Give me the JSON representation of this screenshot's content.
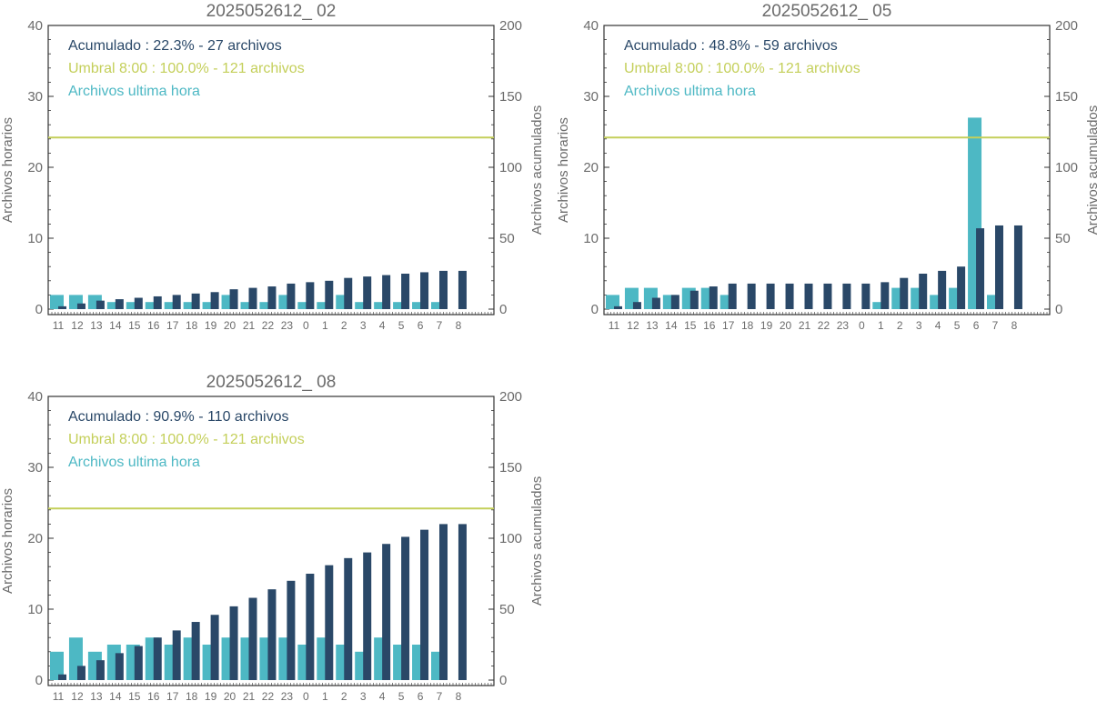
{
  "colors": {
    "hourly": "#4db8c4",
    "cumulative": "#2a4868",
    "threshold": "#c4cf5a",
    "axis": "#333333",
    "text": "#6b6b6b"
  },
  "chart_data": [
    {
      "type": "bar",
      "title": "2025052612_ 02",
      "ylabel_left": "Archivos horarios",
      "ylabel_right": "Archivos acumulados",
      "ylim_left": [
        0,
        40
      ],
      "ylim_right": [
        0,
        200
      ],
      "yticks_left": [
        "0",
        "10",
        "20",
        "30",
        "40"
      ],
      "yticks_right": [
        "0",
        "50",
        "100",
        "150",
        "200"
      ],
      "categories": [
        "11",
        "12",
        "13",
        "14",
        "15",
        "16",
        "17",
        "18",
        "19",
        "20",
        "21",
        "22",
        "23",
        "0",
        "1",
        "2",
        "3",
        "4",
        "5",
        "6",
        "7",
        "8"
      ],
      "threshold": 121,
      "legend": [
        {
          "text": "Acumulado : 22.3% - 27 archivos",
          "color": "#2a4868"
        },
        {
          "text": "Umbral 8:00 : 100.0% - 121 archivos",
          "color": "#c4cf5a"
        },
        {
          "text": "Archivos ultima hora",
          "color": "#4db8c4"
        }
      ],
      "series": [
        {
          "name": "Archivos ultima hora",
          "axis": "left",
          "values": [
            2,
            2,
            2,
            1,
            1,
            1,
            1,
            1,
            1,
            2,
            1,
            1,
            2,
            1,
            1,
            2,
            1,
            1,
            1,
            1,
            1,
            0
          ]
        },
        {
          "name": "Acumulado",
          "axis": "right",
          "values": [
            2,
            4,
            6,
            7,
            8,
            9,
            10,
            11,
            12,
            14,
            15,
            16,
            18,
            19,
            20,
            22,
            23,
            24,
            25,
            26,
            27,
            27
          ]
        }
      ]
    },
    {
      "type": "bar",
      "title": "2025052612_ 05",
      "ylabel_left": "Archivos horarios",
      "ylabel_right": "Archivos acumulados",
      "ylim_left": [
        0,
        40
      ],
      "ylim_right": [
        0,
        200
      ],
      "yticks_left": [
        "0",
        "10",
        "20",
        "30",
        "40"
      ],
      "yticks_right": [
        "0",
        "50",
        "100",
        "150",
        "200"
      ],
      "categories": [
        "11",
        "12",
        "13",
        "14",
        "15",
        "16",
        "17",
        "18",
        "19",
        "20",
        "21",
        "22",
        "23",
        "0",
        "1",
        "2",
        "3",
        "4",
        "5",
        "6",
        "7",
        "8"
      ],
      "threshold": 121,
      "legend": [
        {
          "text": "Acumulado : 48.8% - 59 archivos",
          "color": "#2a4868"
        },
        {
          "text": "Umbral 8:00 : 100.0% - 121 archivos",
          "color": "#c4cf5a"
        },
        {
          "text": "Archivos ultima hora",
          "color": "#4db8c4"
        }
      ],
      "series": [
        {
          "name": "Archivos ultima hora",
          "axis": "left",
          "values": [
            2,
            3,
            3,
            2,
            3,
            3,
            2,
            0,
            0,
            0,
            0,
            0,
            0,
            0,
            1,
            3,
            3,
            2,
            3,
            27,
            2,
            0
          ]
        },
        {
          "name": "Acumulado",
          "axis": "right",
          "values": [
            2,
            5,
            8,
            10,
            13,
            16,
            18,
            18,
            18,
            18,
            18,
            18,
            18,
            18,
            19,
            22,
            25,
            27,
            30,
            57,
            59,
            59
          ]
        }
      ]
    },
    {
      "type": "bar",
      "title": "2025052612_ 08",
      "ylabel_left": "Archivos horarios",
      "ylabel_right": "Archivos acumulados",
      "ylim_left": [
        0,
        40
      ],
      "ylim_right": [
        0,
        200
      ],
      "yticks_left": [
        "0",
        "10",
        "20",
        "30",
        "40"
      ],
      "yticks_right": [
        "0",
        "50",
        "100",
        "150",
        "200"
      ],
      "categories": [
        "11",
        "12",
        "13",
        "14",
        "15",
        "16",
        "17",
        "18",
        "19",
        "20",
        "21",
        "22",
        "23",
        "0",
        "1",
        "2",
        "3",
        "4",
        "5",
        "6",
        "7",
        "8"
      ],
      "threshold": 121,
      "legend": [
        {
          "text": "Acumulado : 90.9% - 110 archivos",
          "color": "#2a4868"
        },
        {
          "text": "Umbral 8:00 : 100.0% - 121 archivos",
          "color": "#c4cf5a"
        },
        {
          "text": "Archivos ultima hora",
          "color": "#4db8c4"
        }
      ],
      "series": [
        {
          "name": "Archivos ultima hora",
          "axis": "left",
          "values": [
            4,
            6,
            4,
            5,
            5,
            6,
            5,
            6,
            5,
            6,
            6,
            6,
            6,
            5,
            6,
            5,
            4,
            6,
            5,
            5,
            4,
            0
          ]
        },
        {
          "name": "Acumulado",
          "axis": "right",
          "values": [
            4,
            10,
            14,
            19,
            24,
            30,
            35,
            41,
            46,
            52,
            58,
            64,
            70,
            75,
            81,
            86,
            90,
            96,
            101,
            106,
            110,
            110
          ]
        }
      ]
    }
  ]
}
